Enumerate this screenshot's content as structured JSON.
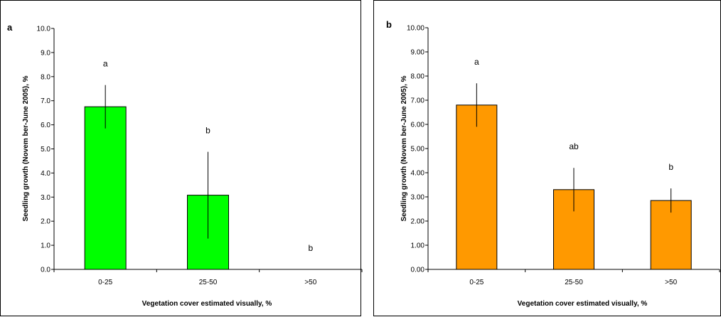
{
  "chart_data": [
    {
      "type": "bar",
      "panel_label": "a",
      "categories": [
        "0-25",
        "25-50",
        ">50"
      ],
      "values": [
        6.75,
        3.08,
        0
      ],
      "error_bars": [
        0.9,
        1.8,
        0
      ],
      "significance_letters": [
        "a",
        "b",
        "b"
      ],
      "ylabel": "Seedling growth (Novem ber-June 2005), %",
      "xlabel": "Vegetation cover estimated visually, %",
      "ylim": [
        0,
        10
      ],
      "y_ticks": [
        "0.0",
        "1.0",
        "2.0",
        "3.0",
        "4.0",
        "5.0",
        "6.0",
        "7.0",
        "8.0",
        "9.0",
        "10.0"
      ],
      "bar_color": "#00ff00",
      "grid": false
    },
    {
      "type": "bar",
      "panel_label": "b",
      "categories": [
        "0-25",
        "25-50",
        ">50"
      ],
      "values": [
        6.8,
        3.3,
        2.85
      ],
      "error_bars": [
        0.9,
        0.9,
        0.5
      ],
      "significance_letters": [
        "a",
        "ab",
        "b"
      ],
      "ylabel": "Seedling growth (Novem ber-June 2005), %",
      "xlabel": "Vegetation cover estimated visually, %",
      "ylim": [
        0,
        10
      ],
      "y_ticks": [
        "0.00",
        "1.00",
        "2.00",
        "3.00",
        "4.00",
        "5.00",
        "6.00",
        "7.00",
        "8.00",
        "9.00",
        "10.00"
      ],
      "bar_color": "#ff9900",
      "grid": false
    }
  ]
}
